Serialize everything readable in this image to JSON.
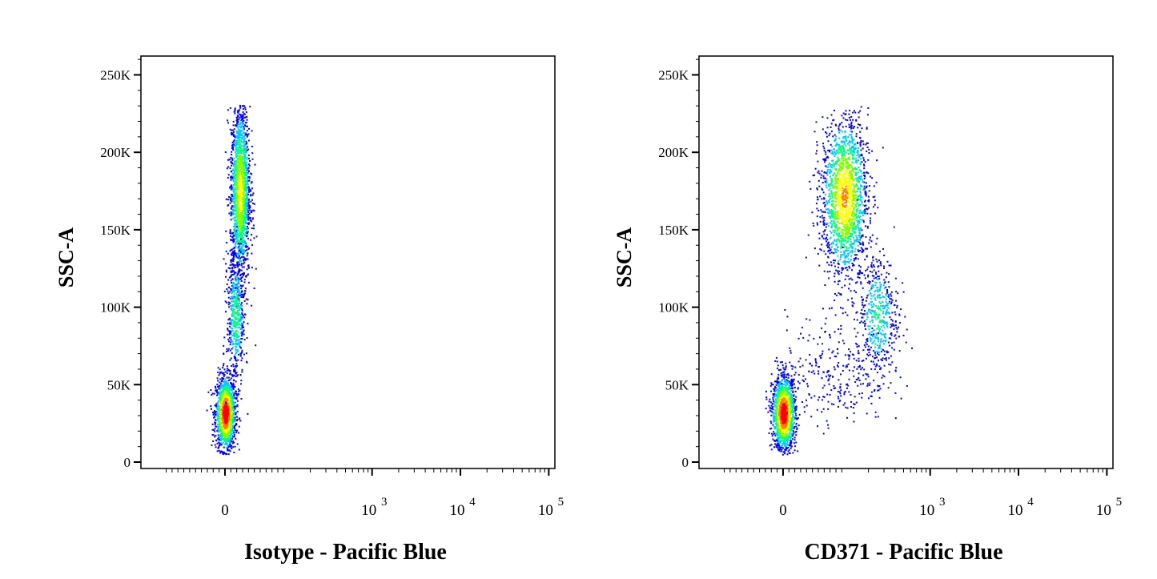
{
  "chart_data": [
    {
      "type": "scatter",
      "xlabel": "Isotype - Pacific Blue",
      "ylabel": "SSC-A",
      "x_scale": "biexponential",
      "x_tick_labels": [
        "0",
        "10",
        "10",
        "10"
      ],
      "x_tick_exponents": [
        "",
        "3",
        "4",
        "5"
      ],
      "y_tick_labels": [
        "0",
        "50K",
        "100K",
        "150K",
        "200K",
        "250K"
      ],
      "ylim": [
        0,
        262144
      ],
      "populations": [
        {
          "name_hint": "low SSC cluster",
          "x_center": 0,
          "y_center": 32000,
          "count": 1400
        },
        {
          "name_hint": "high SSC cluster",
          "x_center": 80,
          "y_center": 170000,
          "count": 1600
        },
        {
          "name_hint": "bridge",
          "x_center": 40,
          "y_center": 100000,
          "count": 500
        }
      ]
    },
    {
      "type": "scatter",
      "xlabel": "CD371 - Pacific Blue",
      "ylabel": "SSC-A",
      "x_scale": "biexponential",
      "x_tick_labels": [
        "0",
        "10",
        "10",
        "10"
      ],
      "x_tick_exponents": [
        "",
        "3",
        "4",
        "5"
      ],
      "y_tick_labels": [
        "0",
        "50K",
        "100K",
        "150K",
        "200K",
        "250K"
      ],
      "ylim": [
        0,
        262144
      ],
      "populations": [
        {
          "name_hint": "low SSC cluster",
          "x_center": 0,
          "y_center": 32000,
          "count": 1400
        },
        {
          "name_hint": "positive high SSC cluster",
          "x_center": 330,
          "y_center": 170000,
          "count": 1700
        },
        {
          "name_hint": "positive mid SSC cluster",
          "x_center": 700,
          "y_center": 95000,
          "count": 500
        },
        {
          "name_hint": "scatter",
          "x_center": 400,
          "y_center": 60000,
          "count": 300
        }
      ]
    }
  ],
  "colors": {
    "density_low": "#0000ff",
    "density_mid_low": "#00c8ff",
    "density_mid": "#00ff80",
    "density_mid_high": "#ffff00",
    "density_high": "#ff0000"
  }
}
